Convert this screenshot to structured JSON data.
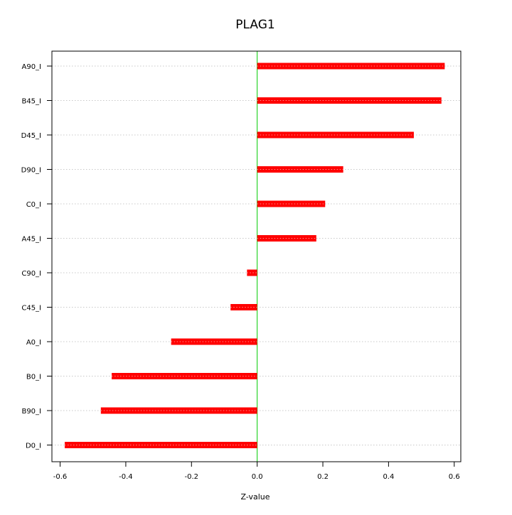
{
  "chart_data": {
    "type": "bar",
    "orientation": "horizontal",
    "title": "PLAG1",
    "xlabel": "Z-value",
    "ylabel": "",
    "categories": [
      "A90_I",
      "B45_I",
      "D45_I",
      "D90_I",
      "C0_I",
      "A45_I",
      "C90_I",
      "C45_I",
      "A0_I",
      "B0_I",
      "B90_I",
      "D0_I"
    ],
    "values": [
      0.571,
      0.561,
      0.477,
      0.262,
      0.207,
      0.18,
      -0.031,
      -0.081,
      -0.262,
      -0.443,
      -0.476,
      -0.586
    ],
    "xlim": [
      -0.625,
      0.62
    ],
    "xticks": [
      -0.6,
      -0.4,
      -0.2,
      0.0,
      0.2,
      0.4,
      0.6
    ],
    "xtick_labels": [
      "-0.6",
      "-0.4",
      "-0.2",
      "0.0",
      "0.2",
      "0.4",
      "0.6"
    ],
    "grid": "horizontal-dotted",
    "zero_line": true,
    "colors": {
      "bar": "#ff0000",
      "zero_line": "#00cc00",
      "grid": "#c8c8c8",
      "axis": "#000000"
    }
  }
}
